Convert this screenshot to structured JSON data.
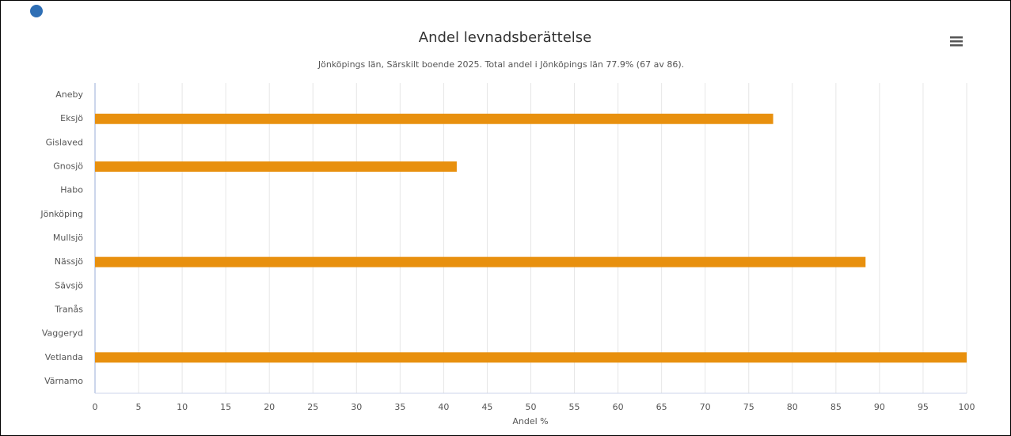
{
  "chart_data": {
    "type": "bar",
    "orientation": "horizontal",
    "title": "Andel levnadsberättelse",
    "subtitle": "Jönköpings län, Särskilt boende 2025. Total andel i Jönköpings län 77.9% (67 av 86).",
    "x_label": "Andel %",
    "categories": [
      "Aneby",
      "Eksjö",
      "Gislaved",
      "Gnosjö",
      "Habo",
      "Jönköping",
      "Mullsjö",
      "Nässjö",
      "Sävsjö",
      "Tranås",
      "Vaggeryd",
      "Vetlanda",
      "Värnamo"
    ],
    "values": [
      null,
      77.8,
      null,
      41.5,
      null,
      null,
      null,
      88.4,
      null,
      null,
      null,
      100,
      null
    ],
    "color": "#e8900e",
    "xlim": [
      0,
      100
    ],
    "xticks": [
      0,
      5,
      10,
      15,
      20,
      25,
      30,
      35,
      40,
      45,
      50,
      55,
      60,
      65,
      70,
      75,
      80,
      85,
      90,
      95,
      100
    ],
    "grid": true
  }
}
